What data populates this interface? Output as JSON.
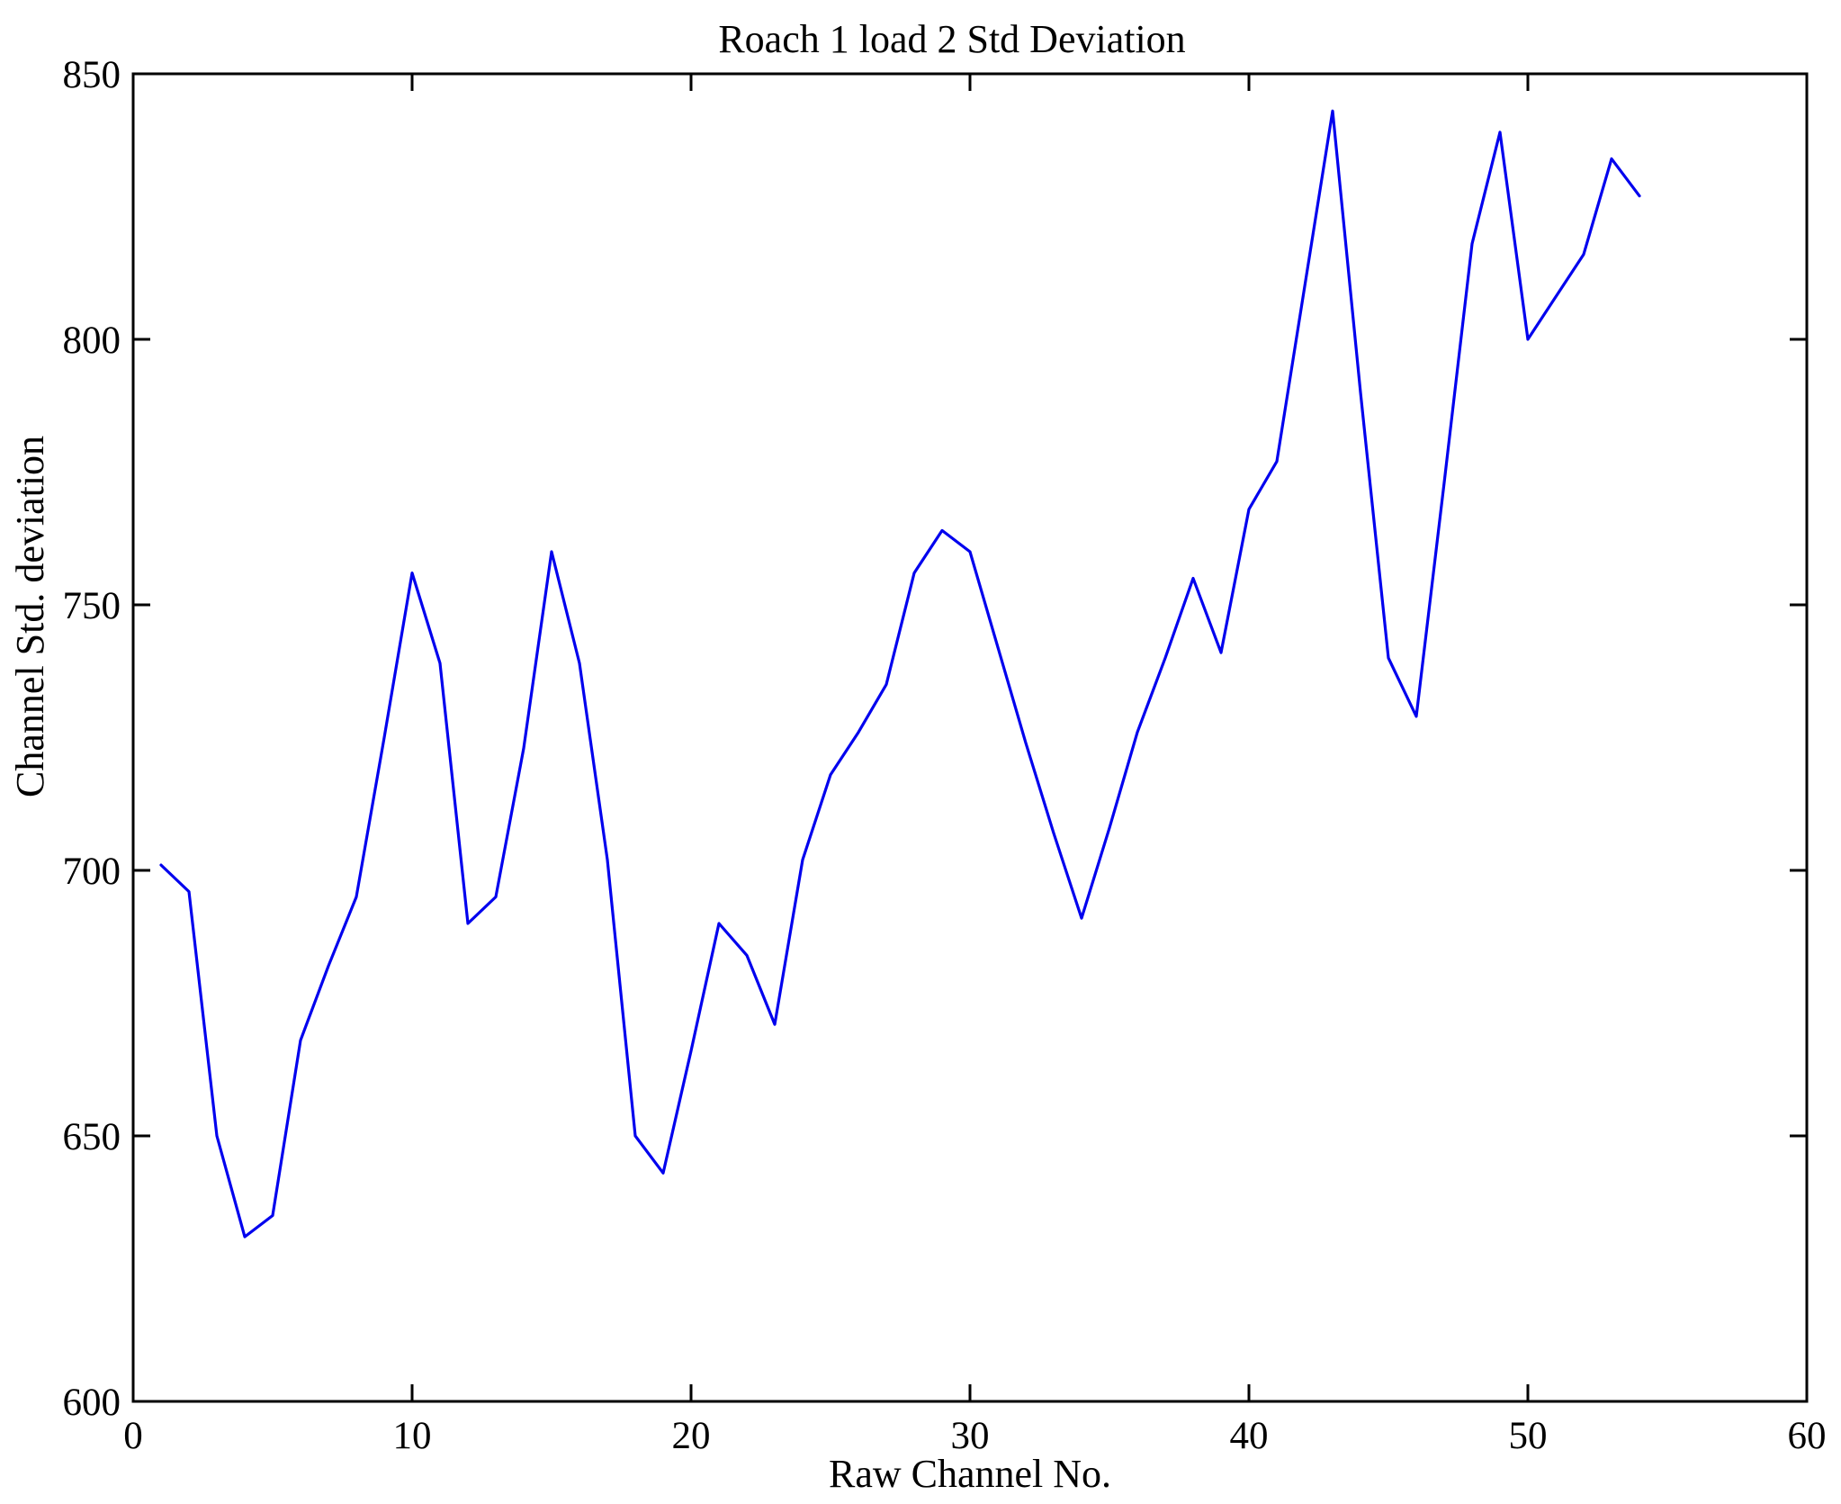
{
  "chart_data": {
    "type": "line",
    "title": "Roach 1 load 2 Std Deviation",
    "xlabel": "Raw Channel No.",
    "ylabel": "Channel Std. deviation",
    "xlim": [
      0,
      60
    ],
    "ylim": [
      600,
      850
    ],
    "xticks": [
      0,
      10,
      20,
      30,
      40,
      50,
      60
    ],
    "yticks": [
      600,
      650,
      700,
      750,
      800,
      850
    ],
    "grid": false,
    "legend_position": "none",
    "axis_color": "#000000",
    "background_color": "#ffffff",
    "series": [
      {
        "name": "Channel Std. deviation",
        "color": "#0000EE",
        "x": [
          1,
          2,
          3,
          4,
          5,
          6,
          7,
          8,
          9,
          10,
          11,
          12,
          13,
          14,
          15,
          16,
          17,
          18,
          19,
          20,
          21,
          22,
          23,
          24,
          25,
          26,
          27,
          28,
          29,
          30,
          31,
          32,
          33,
          34,
          35,
          36,
          37,
          38,
          39,
          40,
          41,
          42,
          43,
          44,
          45,
          46,
          47,
          48,
          49,
          50,
          51,
          52,
          53,
          54
        ],
        "values": [
          701,
          696,
          650,
          631,
          635,
          668,
          682,
          695,
          725,
          756,
          739,
          690,
          695,
          723,
          760,
          739,
          702,
          650,
          643,
          666,
          690,
          684,
          671,
          702,
          718,
          726,
          735,
          756,
          764,
          760,
          742,
          724,
          707,
          691,
          708,
          726,
          740,
          755,
          741,
          768,
          777,
          810,
          843,
          790,
          740,
          729,
          773,
          818,
          839,
          800,
          808,
          816,
          834,
          827
        ]
      }
    ]
  }
}
